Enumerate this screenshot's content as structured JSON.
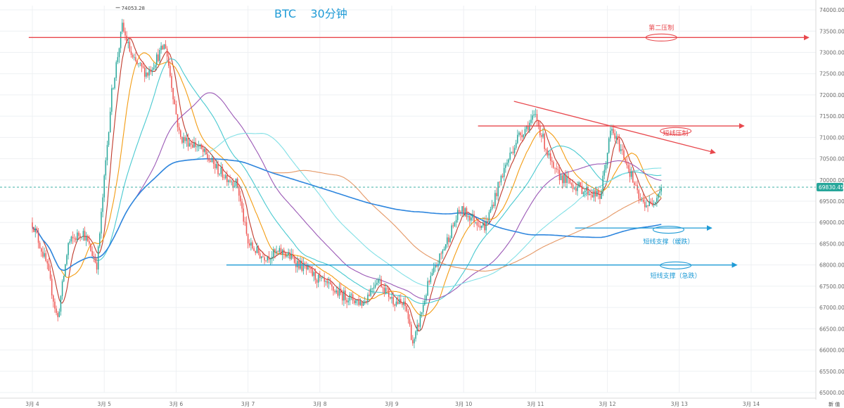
{
  "chart_data": {
    "type": "candlestick",
    "title": "BTC    30分钟",
    "ylim": [
      65000,
      74100
    ],
    "y_ticks": [
      "74000.00",
      "73500.00",
      "73000.00",
      "72500.00",
      "72000.00",
      "71500.00",
      "71000.00",
      "70500.00",
      "70000.00",
      "69500.00",
      "69000.00",
      "68500.00",
      "68000.00",
      "67500.00",
      "67000.00",
      "66500.00",
      "66000.00",
      "65500.00",
      "65000.00"
    ],
    "x_ticks": [
      "3月 4",
      "3月 5",
      "3月 6",
      "3月 7",
      "3月 8",
      "3月 9",
      "3月 10",
      "3月 11",
      "3月 12",
      "3月 13",
      "3月 14"
    ],
    "last_price": "69830.45",
    "high_label": "74053.28",
    "corner_label": "新 值",
    "anchors": [
      {
        "d": 0.0,
        "p": 69000
      },
      {
        "d": 0.2,
        "p": 68000
      },
      {
        "d": 0.35,
        "p": 66700
      },
      {
        "d": 0.5,
        "p": 68500
      },
      {
        "d": 0.7,
        "p": 68800
      },
      {
        "d": 0.9,
        "p": 68000
      },
      {
        "d": 1.1,
        "p": 72000
      },
      {
        "d": 1.25,
        "p": 73600
      },
      {
        "d": 1.4,
        "p": 72800
      },
      {
        "d": 1.6,
        "p": 72500
      },
      {
        "d": 1.85,
        "p": 73200
      },
      {
        "d": 2.05,
        "p": 71000
      },
      {
        "d": 2.3,
        "p": 70800
      },
      {
        "d": 2.6,
        "p": 70200
      },
      {
        "d": 2.85,
        "p": 69900
      },
      {
        "d": 3.0,
        "p": 68500
      },
      {
        "d": 3.2,
        "p": 68200
      },
      {
        "d": 3.5,
        "p": 68300
      },
      {
        "d": 3.8,
        "p": 67900
      },
      {
        "d": 4.1,
        "p": 67500
      },
      {
        "d": 4.3,
        "p": 67300
      },
      {
        "d": 4.6,
        "p": 67100
      },
      {
        "d": 4.8,
        "p": 67700
      },
      {
        "d": 5.0,
        "p": 67200
      },
      {
        "d": 5.2,
        "p": 67000
      },
      {
        "d": 5.3,
        "p": 66100
      },
      {
        "d": 5.5,
        "p": 67500
      },
      {
        "d": 5.75,
        "p": 68500
      },
      {
        "d": 5.95,
        "p": 69300
      },
      {
        "d": 6.3,
        "p": 68900
      },
      {
        "d": 6.55,
        "p": 70200
      },
      {
        "d": 6.75,
        "p": 71000
      },
      {
        "d": 7.0,
        "p": 71500
      },
      {
        "d": 7.25,
        "p": 70200
      },
      {
        "d": 7.5,
        "p": 69900
      },
      {
        "d": 7.9,
        "p": 69600
      },
      {
        "d": 8.05,
        "p": 71200
      },
      {
        "d": 8.25,
        "p": 70500
      },
      {
        "d": 8.45,
        "p": 69500
      },
      {
        "d": 8.6,
        "p": 69400
      },
      {
        "d": 8.75,
        "p": 69830
      }
    ],
    "h_lines": [
      {
        "name": "第二压制",
        "price": 73350,
        "d0": -0.05,
        "d1": 10.8,
        "color": "#e8484d",
        "arrow": true
      },
      {
        "name": "短线压制",
        "price": 71270,
        "d0": 6.2,
        "d1": 9.9,
        "color": "#e8484d",
        "arrow": true
      },
      {
        "name": "短线支撑（缓跌）",
        "price": 68870,
        "d0": 7.55,
        "d1": 9.45,
        "color": "#1f9bd6",
        "arrow": true
      },
      {
        "name": "短线支撑（急跌）",
        "price": 68000,
        "d0": 2.7,
        "d1": 9.8,
        "color": "#1f9bd6",
        "arrow": true
      }
    ],
    "trend_line": {
      "d0": 6.7,
      "p0": 71850,
      "d1": 9.5,
      "p1": 70640,
      "color": "#e8484d"
    },
    "ellipses": [
      {
        "label": "第二压制",
        "d": 8.75,
        "price": 73350,
        "color": "#e8484d",
        "label_price": 73580
      },
      {
        "label": "短线压制",
        "d": 8.95,
        "price": 71150,
        "color": "#e8484d",
        "label_price": 71100
      },
      {
        "label": "短线支撑（缓跌）",
        "d": 8.85,
        "price": 68830,
        "color": "#1f9bd6",
        "label_price": 68550
      },
      {
        "label": "短线支撑（急跌）",
        "d": 8.95,
        "price": 67990,
        "color": "#1f9bd6",
        "label_price": 67750
      }
    ],
    "moving_averages": [
      {
        "period": 8,
        "color": "#c0392b"
      },
      {
        "period": 20,
        "color": "#f39c12"
      },
      {
        "period": 40,
        "color": "#48c9d0"
      },
      {
        "period": 70,
        "color": "#9b59b6"
      },
      {
        "period": 110,
        "color": "#82e0e6"
      },
      {
        "period": 160,
        "color": "#e59866"
      },
      {
        "period": 240,
        "color": "#2e86de"
      }
    ],
    "colors": {
      "up": "#26a69a",
      "down": "#ef5350",
      "grid": "#eef0f3",
      "axis": "#d9d9d9",
      "dash": "#26a69a"
    }
  }
}
